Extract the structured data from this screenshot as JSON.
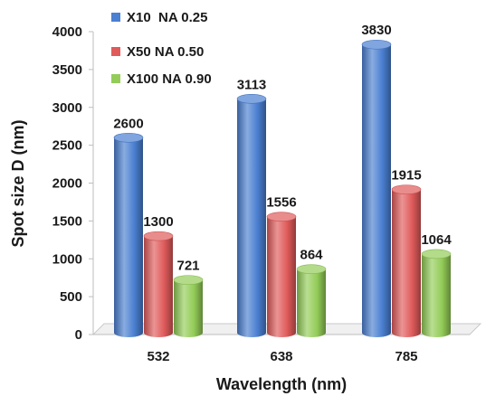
{
  "chart_data": {
    "type": "bar",
    "categories": [
      "532",
      "638",
      "785"
    ],
    "series": [
      {
        "name": "X10  NA 0.25",
        "values": [
          2600,
          3113,
          3830
        ],
        "color": "#4a7fd1"
      },
      {
        "name": "X50 NA 0.50",
        "values": [
          1300,
          1556,
          1915
        ],
        "color": "#e05a5a"
      },
      {
        "name": "X100 NA 0.90",
        "values": [
          721,
          864,
          1064
        ],
        "color": "#93cc58"
      }
    ],
    "xlabel": "Wavelength (nm)",
    "ylabel": "Spot size D  (nm)",
    "ylim": [
      0,
      4000
    ],
    "yticks": [
      "0",
      "500",
      "1000",
      "1500",
      "2000",
      "2500",
      "3000",
      "3500",
      "4000"
    ],
    "data_labels": [
      [
        "2600",
        "3113",
        "3830"
      ],
      [
        "1300",
        "1556",
        "1915"
      ],
      [
        "721",
        "864",
        "1064"
      ]
    ],
    "legend_position": "top-left",
    "grid": false,
    "style": "3d-cylinder"
  }
}
